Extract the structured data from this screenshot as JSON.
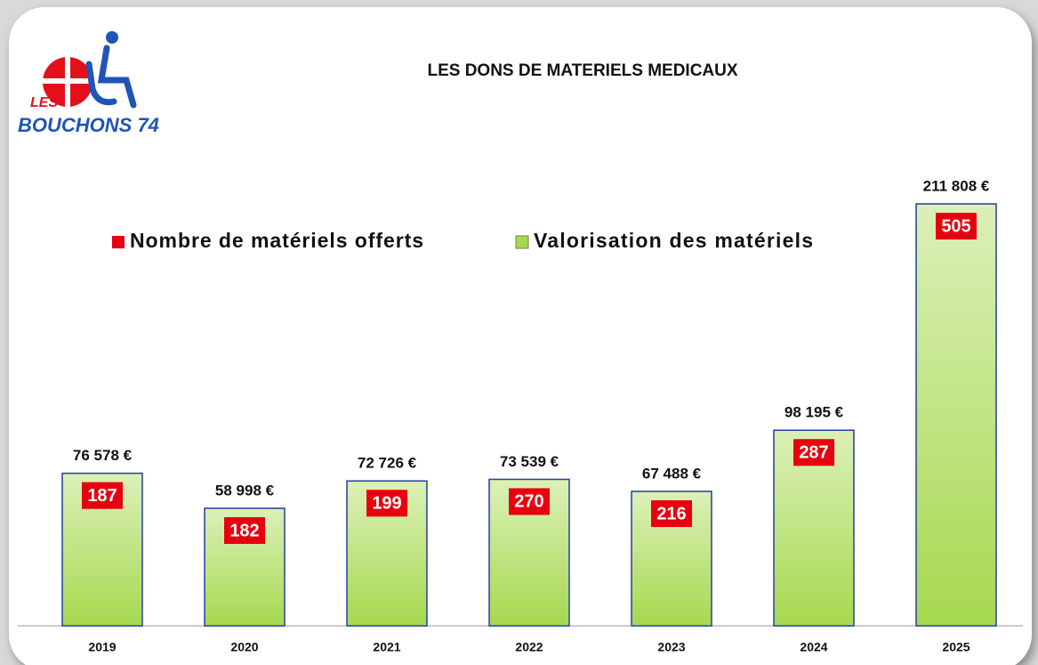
{
  "logo": {
    "top": "LES",
    "bottom": "BOUCHONS 74"
  },
  "chart_data": {
    "type": "bar",
    "title": "LES DONS DE MATERIELS MEDICAUX",
    "categories": [
      "2019",
      "2020",
      "2021",
      "2022",
      "2023",
      "2024",
      "2025"
    ],
    "legend": "top",
    "series": [
      {
        "name": "Nombre de matériels offerts",
        "color": "#e8000f",
        "values": [
          187,
          182,
          199,
          270,
          216,
          287,
          505
        ]
      },
      {
        "name": "Valorisation des matériels",
        "color": "#a6d94f",
        "values": [
          76578,
          58998,
          72726,
          73539,
          67488,
          98195,
          211808
        ],
        "value_labels": [
          "76 578 €",
          "58 998 €",
          "72 726 €",
          "73 539 €",
          "67 488 €",
          "98 195 €",
          "211 808 €"
        ]
      }
    ]
  }
}
